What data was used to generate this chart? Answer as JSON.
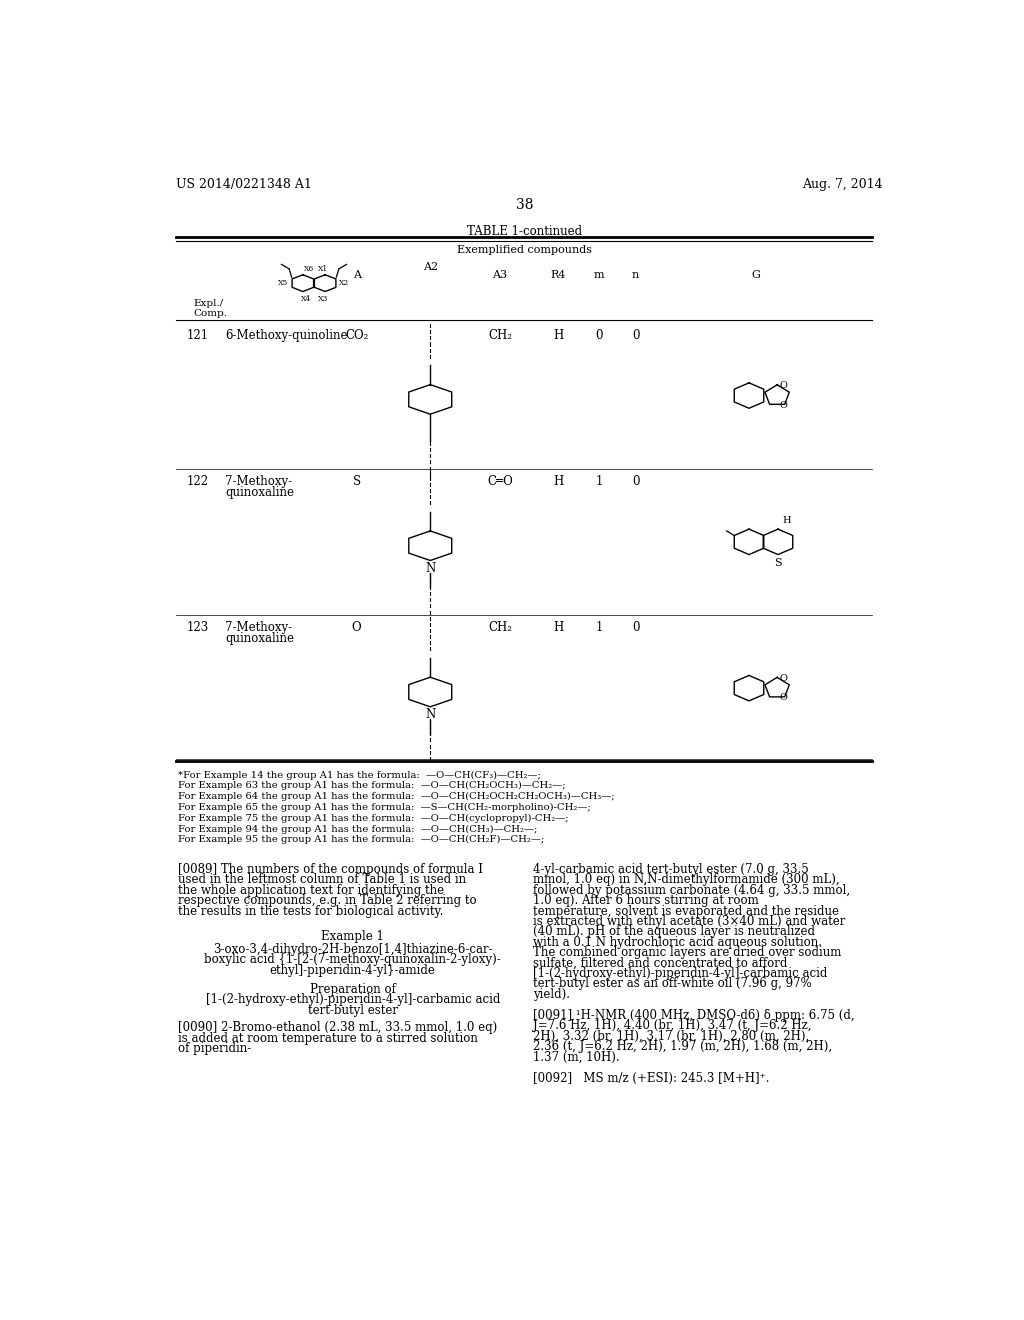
{
  "bg_color": "#ffffff",
  "header_left": "US 2014/0221348 A1",
  "header_right": "Aug. 7, 2014",
  "page_number": "38",
  "table_title": "TABLE 1-continued",
  "table_subtitle": "Exemplified compounds",
  "footnotes": [
    "*For Example 14 the group A1 has the formula:  —O—CH(CF₃)—CH₂—;",
    "For Example 63 the group A1 has the formula:  —O—CH(CH₂OCH₃)—CH₂—;",
    "For Example 64 the group A1 has the formula:  —O—CH(CH₂OCH₂CH₂OCH₃)—CH₃—;",
    "For Example 65 the group A1 has the formula:  —S—CH(CH₂-morpholino)-CH₂—;",
    "For Example 75 the group A1 has the formula:  —O—CH(cyclopropyl)-CH₂—;",
    "For Example 94 the group A1 has the formula:  —O—CH(CH₃)—CH₂—;",
    "For Example 95 the group A1 has the formula:  —O—CH(CH₂F)—CH₂—;"
  ],
  "para_0089": "[0089]   The numbers of the compounds of formula I used in the leftmost column of Table 1 is used in the whole application text for identifying the respective compounds, e.g. in Table 2 referring to the results in the tests for biological activity.",
  "example1_title": "Example 1",
  "example1_name_lines": [
    "3-oxo-3,4-dihydro-2H-benzo[1,4]thiazine-6-car-",
    "boxylic acid {1-[2-(7-methoxy-quinoxalin-2-yloxy)-",
    "ethyl]-piperidin-4-yl}-amide"
  ],
  "prep_title_lines": [
    "Preparation of",
    "[1-(2-hydroxy-ethyl)-piperidin-4-yl]-carbamic acid",
    "tert-butyl ester"
  ],
  "para_0090": "[0090]   2-Bromo-ethanol (2.38 mL, 33.5 mmol, 1.0 eq) is added at room temperature to a stirred solution of piperidin-",
  "para_right_1": "4-yl-carbamic acid tert-butyl ester (7.0 g, 33.5 mmol, 1.0 eq) in N,N-dimethylformamide (300 mL), followed by potassium carbonate (4.64 g, 33.5 mmol, 1.0 eq). After 6 hours stirring at room temperature, solvent is evaporated and the residue is extracted with ethyl acetate (3×40 mL) and water (40 mL). pH of the aqueous layer is neutralized with a 0.1 N hydrochloric acid aqueous solution. The combined organic layers are dried over sodium sulfate, filtered and concentrated to afford [1-(2-hydroxy-ethyl)-piperidin-4-yl]-carbamic acid tert-butyl ester as an off-white oil (7.96 g, 97% yield).",
  "para_0091": "[0091]   ¹H-NMR (400 MHz, DMSO-d6) δ ppm: 6.75 (d, J=7.6 Hz, 1H), 4.40 (br, 1H), 3.47 (t, J=6.2 Hz, 2H), 3.32 (br, 1H), 3.17 (br, 1H), 2.80 (m, 2H), 2.36 (t, J=6.2 Hz, 2H), 1.97 (m, 2H), 1.68 (m, 2H), 1.37 (m, 10H).",
  "para_0092": "[0092]   MS m/z (+ESI): 245.3 [M+H]⁺."
}
